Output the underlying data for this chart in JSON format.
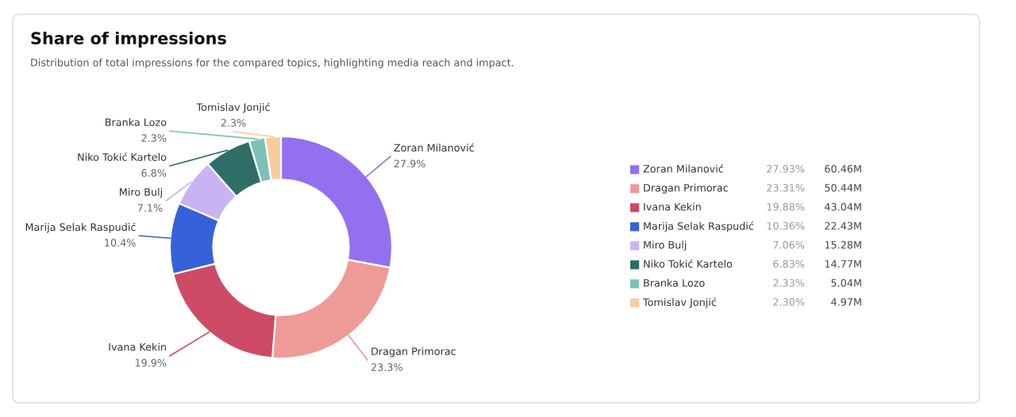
{
  "chart_data": {
    "type": "donut",
    "title": "Share of impressions",
    "subtitle": "Distribution of total impressions for the compared topics, highlighting media reach and impact.",
    "categories": [
      "Zoran Milanović",
      "Dragan Primorac",
      "Ivana Kekin",
      "Marija Selak Raspudić",
      "Miro Bulj",
      "Niko Tokić Kartelo",
      "Branka Lozo",
      "Tomislav Jonjić"
    ],
    "values": [
      60.46,
      50.44,
      43.04,
      22.43,
      15.28,
      14.77,
      5.04,
      4.97
    ],
    "colors": [
      "#9370f0",
      "#ee9a98",
      "#cf4a64",
      "#3661d9",
      "#c9b3f3",
      "#2e6e66",
      "#7cc1b8",
      "#f9cc9e"
    ],
    "value_labels": [
      "60.46M",
      "50.44M",
      "43.04M",
      "22.43M",
      "15.28M",
      "14.77M",
      "5.04M",
      "4.97M"
    ],
    "annotations": [
      "27.9%",
      "23.3%",
      "19.9%",
      "10.4%",
      "7.1%",
      "6.8%",
      "2.3%",
      "2.3%",
      "27.93%",
      "23.31%",
      "19.88%",
      "10.36%",
      "7.06%",
      "6.83%",
      "2.33%",
      "2.30%"
    ],
    "legend": "right"
  }
}
